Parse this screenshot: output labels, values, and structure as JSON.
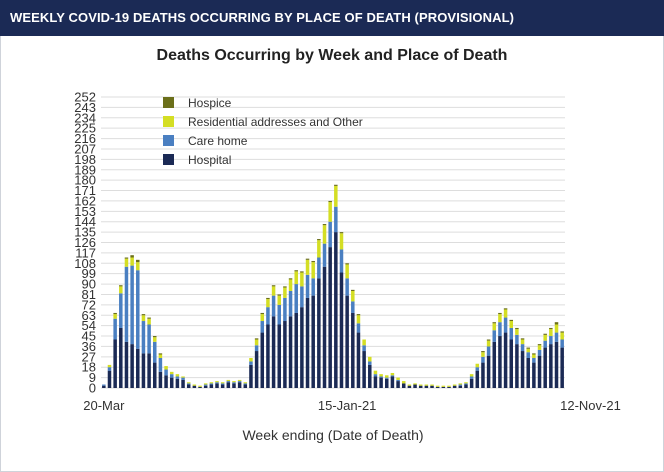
{
  "header": {
    "title": "WEEKLY COVID-19 DEATHS OCCURRING BY PLACE OF DEATH (PROVISIONAL)"
  },
  "chart_data": {
    "type": "bar",
    "stacked": true,
    "title": "Deaths Occurring by Week and Place of Death",
    "xlabel": "Week ending (Date of Death)",
    "ylabel": "",
    "ylim": [
      0,
      252
    ],
    "yticks": [
      0,
      9,
      18,
      27,
      36,
      45,
      54,
      63,
      72,
      81,
      90,
      99,
      108,
      117,
      126,
      135,
      144,
      153,
      162,
      171,
      180,
      189,
      198,
      207,
      216,
      225,
      234,
      243,
      252
    ],
    "xtick_labels": [
      {
        "index": 0,
        "label": "20-Mar"
      },
      {
        "index": 43,
        "label": "15-Jan-21"
      },
      {
        "index": 86,
        "label": "12-Nov-21"
      }
    ],
    "grid": true,
    "legend_position": "top-left",
    "colors": {
      "Hospital": "#1b2a55",
      "Care home": "#4a7fc1",
      "Residential addresses and Other": "#d4de24",
      "Hospice": "#6b6f1a"
    },
    "legend": [
      "Hospice",
      "Residential addresses and Other",
      "Care home",
      "Hospital"
    ],
    "series": [
      {
        "name": "Hospital",
        "values": [
          2,
          15,
          42,
          52,
          40,
          38,
          34,
          30,
          30,
          22,
          14,
          11,
          9,
          8,
          7,
          3,
          2,
          1,
          2,
          3,
          4,
          3,
          5,
          4,
          5,
          3,
          20,
          32,
          48,
          55,
          62,
          55,
          58,
          62,
          65,
          70,
          78,
          80,
          95,
          105,
          122,
          135,
          100,
          80,
          65,
          48,
          32,
          20,
          10,
          9,
          8,
          10,
          6,
          4,
          2,
          3,
          2,
          2,
          2,
          1,
          1,
          1,
          2,
          2,
          3,
          8,
          15,
          22,
          28,
          40,
          45,
          48,
          42,
          38,
          32,
          26,
          22,
          28,
          35,
          38,
          40,
          35
        ]
      },
      {
        "name": "Care home",
        "values": [
          1,
          3,
          18,
          30,
          65,
          68,
          68,
          28,
          25,
          18,
          12,
          5,
          3,
          2,
          2,
          1,
          0,
          0,
          1,
          1,
          1,
          1,
          1,
          1,
          1,
          1,
          3,
          5,
          10,
          15,
          18,
          17,
          20,
          22,
          25,
          18,
          20,
          15,
          18,
          20,
          22,
          22,
          20,
          15,
          10,
          8,
          5,
          3,
          2,
          1,
          1,
          1,
          1,
          0,
          0,
          0,
          0,
          0,
          0,
          0,
          0,
          0,
          0,
          1,
          1,
          2,
          3,
          5,
          8,
          10,
          12,
          13,
          10,
          8,
          6,
          5,
          4,
          5,
          6,
          7,
          8,
          7
        ]
      },
      {
        "name": "Residential addresses and Other",
        "values": [
          0,
          2,
          4,
          6,
          7,
          7,
          7,
          5,
          5,
          4,
          3,
          3,
          2,
          2,
          1,
          1,
          1,
          1,
          1,
          1,
          1,
          1,
          1,
          1,
          1,
          1,
          3,
          5,
          6,
          7,
          8,
          8,
          9,
          10,
          11,
          12,
          13,
          14,
          15,
          16,
          17,
          18,
          14,
          12,
          9,
          7,
          5,
          4,
          3,
          2,
          2,
          2,
          2,
          2,
          1,
          1,
          1,
          1,
          1,
          1,
          1,
          1,
          1,
          1,
          1,
          2,
          3,
          4,
          5,
          6,
          7,
          7,
          6,
          5,
          4,
          3,
          3,
          4,
          5,
          6,
          7,
          6
        ]
      },
      {
        "name": "Hospice",
        "values": [
          0,
          0,
          1,
          1,
          1,
          2,
          2,
          1,
          1,
          1,
          1,
          0,
          0,
          0,
          0,
          0,
          0,
          0,
          0,
          0,
          0,
          0,
          0,
          0,
          0,
          0,
          0,
          1,
          1,
          1,
          1,
          1,
          1,
          1,
          1,
          1,
          1,
          1,
          1,
          1,
          1,
          1,
          1,
          1,
          1,
          1,
          0,
          0,
          0,
          0,
          0,
          0,
          0,
          0,
          0,
          0,
          0,
          0,
          0,
          0,
          0,
          0,
          0,
          0,
          0,
          0,
          0,
          1,
          1,
          1,
          1,
          1,
          1,
          1,
          1,
          1,
          1,
          1,
          1,
          1,
          2,
          1
        ]
      }
    ]
  }
}
